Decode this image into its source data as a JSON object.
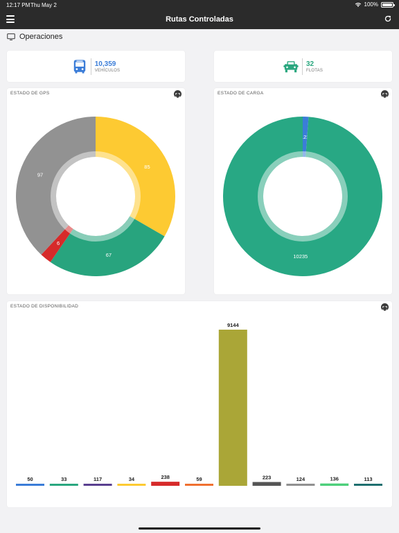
{
  "status_bar": {
    "time": "12:17 PM",
    "date": "Thu May 2",
    "battery": "100%"
  },
  "navbar": {
    "title": "Rutas Controladas",
    "menu_icon": "hamburger-menu-icon",
    "refresh_icon": "refresh-icon"
  },
  "section": {
    "title": "Operaciones",
    "icon": "monitor-icon"
  },
  "kpis": [
    {
      "value": "10,359",
      "label": "VEHÍCULOS",
      "icon": "bus-icon",
      "color": "#3b7dd8"
    },
    {
      "value": "32",
      "label": "FLOTAS",
      "icon": "fleet-truck-icon",
      "color": "#2aa77f"
    }
  ],
  "chart_data": [
    {
      "type": "pie",
      "title": "ESTADO DE GPS",
      "slices": [
        {
          "value": 85,
          "label": "85",
          "color": "#fdca32"
        },
        {
          "value": 67,
          "label": "67",
          "color": "#28a47e"
        },
        {
          "value": 6,
          "label": "6",
          "color": "#d62a2a"
        },
        {
          "value": 97,
          "label": "97",
          "color": "#929292"
        }
      ]
    },
    {
      "type": "pie",
      "title": "ESTADO DE CARGA",
      "slices": [
        {
          "value": 122,
          "label": "122",
          "color": "#3b7dd8"
        },
        {
          "value": 10235,
          "label": "10235",
          "color": "#28a884"
        }
      ]
    },
    {
      "type": "bar",
      "title": "ESTADO DE DISPONIBILIDAD",
      "values": [
        50,
        33,
        117,
        34,
        238,
        59,
        9144,
        223,
        124,
        136,
        113
      ],
      "colors": [
        "#3b7dd8",
        "#2aa77f",
        "#5a3f8f",
        "#fdca32",
        "#d62a2a",
        "#f07030",
        "#aaa637",
        "#555555",
        "#909090",
        "#4ccf7a",
        "#1e6f6f"
      ],
      "ylim": [
        0,
        9144
      ]
    }
  ]
}
